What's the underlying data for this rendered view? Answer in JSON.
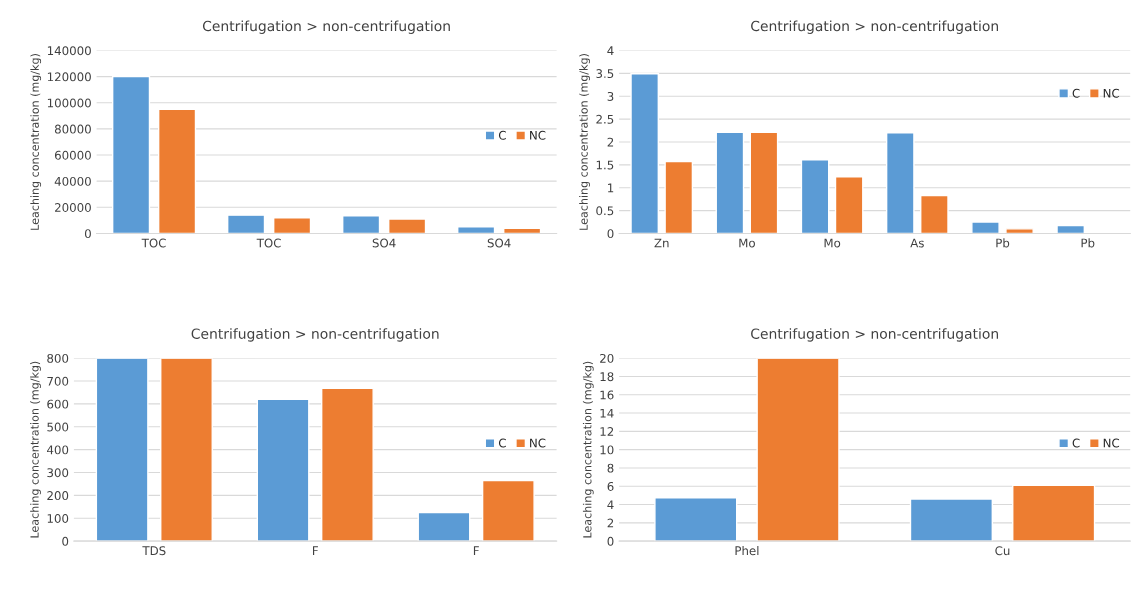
{
  "chart_data": [
    {
      "type": "bar",
      "title": "Centrifugation > non-centrifugation",
      "ylabel": "Leaching concentration (mg/kg)",
      "categories": [
        "TOC",
        "TOC",
        "SO4",
        "SO4"
      ],
      "series": [
        {
          "name": "C",
          "color": "#5b9bd5",
          "values": [
            120000,
            14000,
            13500,
            5000
          ]
        },
        {
          "name": "NC",
          "color": "#ed7d31",
          "values": [
            95000,
            12000,
            11000,
            4000
          ]
        }
      ],
      "ylim": [
        0,
        140000
      ],
      "yticks": [
        0,
        20000,
        40000,
        60000,
        80000,
        100000,
        120000,
        140000
      ],
      "grid": "y",
      "legend": "right"
    },
    {
      "type": "bar",
      "title": "Centrifugation > non-centrifugation",
      "ylabel": "Leaching concentration (mg/kg)",
      "categories": [
        "Zn",
        "Mo",
        "Mo",
        "As",
        "Pb",
        "Pb"
      ],
      "series": [
        {
          "name": "C",
          "color": "#5b9bd5",
          "values": [
            3.49,
            2.21,
            1.61,
            2.2,
            0.25,
            0.17
          ]
        },
        {
          "name": "NC",
          "color": "#ed7d31",
          "values": [
            1.57,
            2.21,
            1.24,
            0.83,
            0.1,
            null
          ]
        }
      ],
      "ylim": [
        0,
        4
      ],
      "yticks": [
        0,
        {
          "value": 0.5,
          "label": "0.5"
        },
        1,
        {
          "value": 1.5,
          "label": "1.5"
        },
        2,
        {
          "value": 2.5,
          "label": "2.5"
        },
        3,
        {
          "value": 3.5,
          "label": "3.5"
        },
        4
      ],
      "grid": "y",
      "legend": "top right"
    },
    {
      "type": "bar",
      "title": "Centrifugation > non-centrifugation",
      "ylabel": "Leaching concentration (mg/kg)",
      "categories": [
        "TDS",
        "F",
        "F"
      ],
      "series": [
        {
          "name": "C",
          "color": "#5b9bd5",
          "values": [
            800,
            620,
            125
          ]
        },
        {
          "name": "NC",
          "color": "#ed7d31",
          "values": [
            800,
            668,
            265
          ]
        }
      ],
      "ylim": [
        0,
        800
      ],
      "yticks": [
        0,
        100,
        200,
        300,
        400,
        500,
        600,
        700,
        800
      ],
      "grid": "y",
      "legend": "right"
    },
    {
      "type": "bar",
      "title": "Centrifugation > non-centrifugation",
      "ylabel": "Leaching concentration (mg/kg)",
      "categories": [
        "Phel",
        "Cu"
      ],
      "series": [
        {
          "name": "C",
          "color": "#5b9bd5",
          "values": [
            4.75,
            4.6
          ]
        },
        {
          "name": "NC",
          "color": "#ed7d31",
          "values": [
            20,
            6.1
          ]
        }
      ],
      "ylim": [
        0,
        20
      ],
      "yticks": [
        0,
        2,
        4,
        6,
        8,
        10,
        12,
        14,
        16,
        18,
        20
      ],
      "grid": "y",
      "legend": "right"
    }
  ]
}
